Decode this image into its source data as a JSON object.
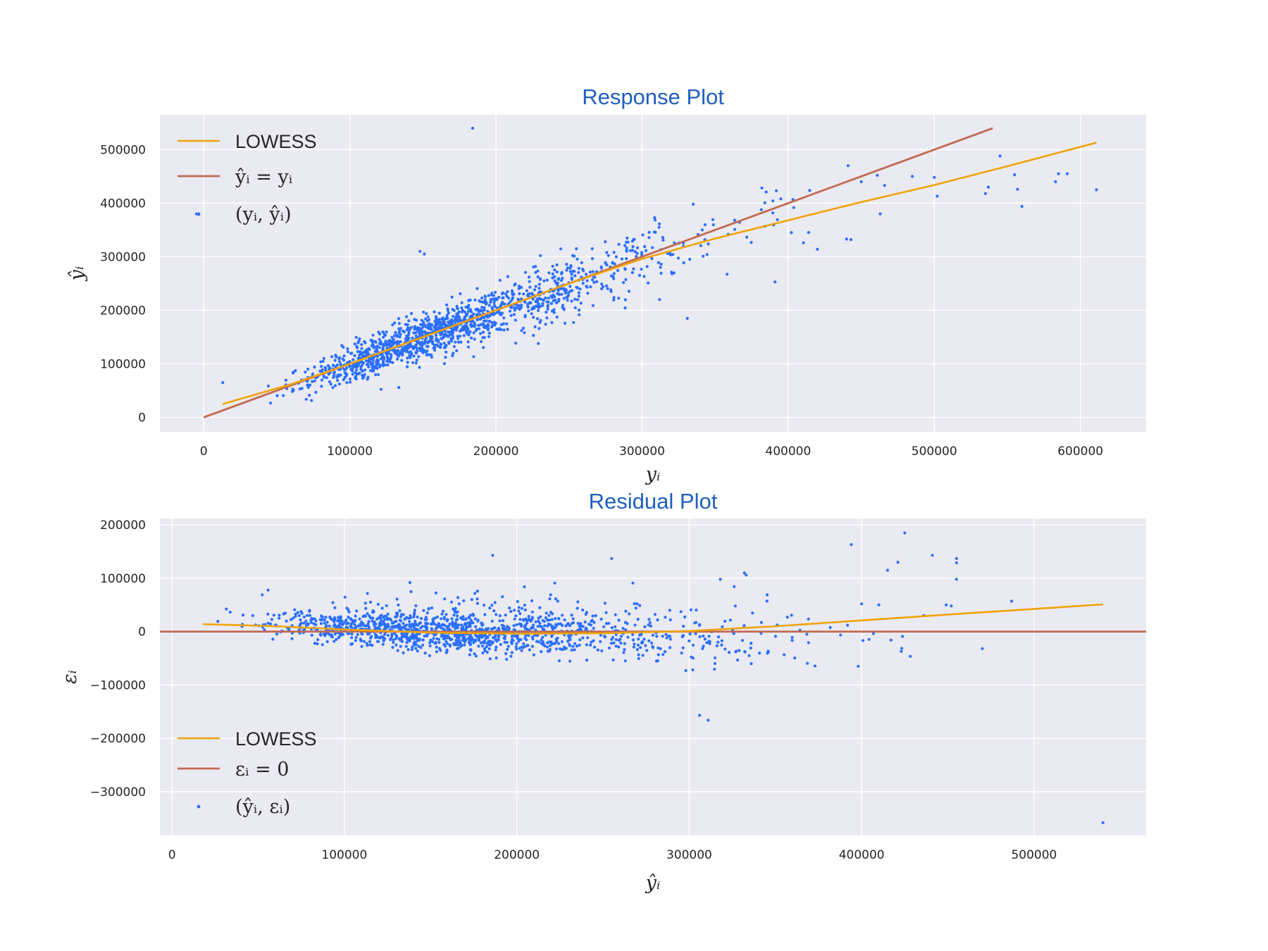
{
  "chart_data": [
    {
      "type": "scatter",
      "title": "Response Plot",
      "xlabel": "yᵢ",
      "ylabel": "ŷᵢ",
      "xlim": [
        -30000,
        645000
      ],
      "ylim": [
        -27000,
        565000
      ],
      "xticks": [
        0,
        100000,
        200000,
        300000,
        400000,
        500000,
        600000
      ],
      "yticks": [
        0,
        100000,
        200000,
        300000,
        400000,
        500000
      ],
      "grid": true,
      "legend_position": "top-left",
      "series": [
        {
          "name": "LOWESS",
          "kind": "line",
          "color": "#f0a30a",
          "x": [
            13000,
            60000,
            100000,
            150000,
            200000,
            250000,
            300000,
            350000,
            400000,
            450000,
            500000,
            550000,
            611000
          ],
          "y": [
            25000,
            62000,
            100000,
            150000,
            200000,
            250000,
            296000,
            334000,
            368000,
            402000,
            434000,
            469000,
            513000
          ]
        },
        {
          "name": "ŷᵢ = yᵢ",
          "kind": "line",
          "color": "#c26a52",
          "x": [
            0,
            540000
          ],
          "y": [
            0,
            540000
          ]
        },
        {
          "name": "(yᵢ, ŷᵢ)",
          "kind": "scatter",
          "color": "#2a6fff",
          "highlight_points": [
            [
              -5000,
              380000
            ],
            [
              13000,
              65000
            ],
            [
              184000,
              540000
            ],
            [
              148000,
              310000
            ],
            [
              151000,
              305000
            ],
            [
              229000,
              138000
            ],
            [
              312000,
              220000
            ],
            [
              331000,
              185000
            ],
            [
              335000,
              398000
            ],
            [
              391000,
              253000
            ],
            [
              385000,
              421000
            ],
            [
              395000,
              408000
            ],
            [
              441000,
              470000
            ],
            [
              450000,
              440000
            ],
            [
              461000,
              452000
            ],
            [
              466000,
              433000
            ],
            [
              485000,
              450000
            ],
            [
              500000,
              448000
            ],
            [
              502000,
              413000
            ],
            [
              535000,
              418000
            ],
            [
              537000,
              430000
            ],
            [
              545000,
              488000
            ],
            [
              555000,
              453000
            ],
            [
              557000,
              426000
            ],
            [
              560000,
              394000
            ],
            [
              583000,
              440000
            ],
            [
              585000,
              455000
            ],
            [
              591000,
              455000
            ],
            [
              611000,
              425000
            ],
            [
              463000,
              380000
            ],
            [
              440000,
              333000
            ],
            [
              443000,
              332000
            ],
            [
              420000,
              314000
            ]
          ]
        }
      ]
    },
    {
      "type": "scatter",
      "title": "Residual Plot",
      "xlabel": "ŷᵢ",
      "ylabel": "εᵢ",
      "xlim": [
        -7000,
        565000
      ],
      "ylim": [
        -382000,
        212000
      ],
      "xticks": [
        0,
        100000,
        200000,
        300000,
        400000,
        500000
      ],
      "yticks": [
        -300000,
        -200000,
        -100000,
        0,
        100000,
        200000
      ],
      "grid": true,
      "legend_position": "bottom-left",
      "series": [
        {
          "name": "LOWESS",
          "kind": "line",
          "color": "#f0a30a",
          "x": [
            18000,
            60000,
            100000,
            150000,
            200000,
            250000,
            300000,
            350000,
            400000,
            450000,
            540000
          ],
          "y": [
            14000,
            10000,
            4000,
            -2000,
            -4000,
            -3000,
            1000,
            10000,
            21000,
            32000,
            51000
          ]
        },
        {
          "name": "εᵢ = 0",
          "kind": "line",
          "color": "#c26a52",
          "x": [
            -7000,
            565000
          ],
          "y": [
            0,
            0
          ]
        },
        {
          "name": "(ŷᵢ, εᵢ)",
          "kind": "scatter",
          "color": "#2a6fff",
          "highlight_points": [
            [
              186000,
              143000
            ],
            [
              255000,
              137000
            ],
            [
              222000,
              91000
            ],
            [
              138000,
              92000
            ],
            [
              306000,
              -157000
            ],
            [
              311000,
              -166000
            ],
            [
              540000,
              -358000
            ],
            [
              394000,
              163000
            ],
            [
              425000,
              185000
            ],
            [
              421000,
              130000
            ],
            [
              415000,
              115000
            ],
            [
              441000,
              143000
            ],
            [
              455000,
              137000
            ],
            [
              455000,
              129000
            ],
            [
              455000,
              98000
            ],
            [
              470000,
              -32000
            ],
            [
              487000,
              57000
            ],
            [
              398000,
              -65000
            ],
            [
              410000,
              50000
            ],
            [
              400000,
              52000
            ],
            [
              423000,
              -37000
            ],
            [
              417000,
              -16000
            ],
            [
              332000,
              110000
            ],
            [
              333000,
              106000
            ],
            [
              318000,
              98000
            ],
            [
              298000,
              -73000
            ],
            [
              336000,
              -60000
            ],
            [
              436000,
              30000
            ],
            [
              449000,
              50000
            ],
            [
              452000,
              48000
            ]
          ]
        }
      ]
    }
  ]
}
